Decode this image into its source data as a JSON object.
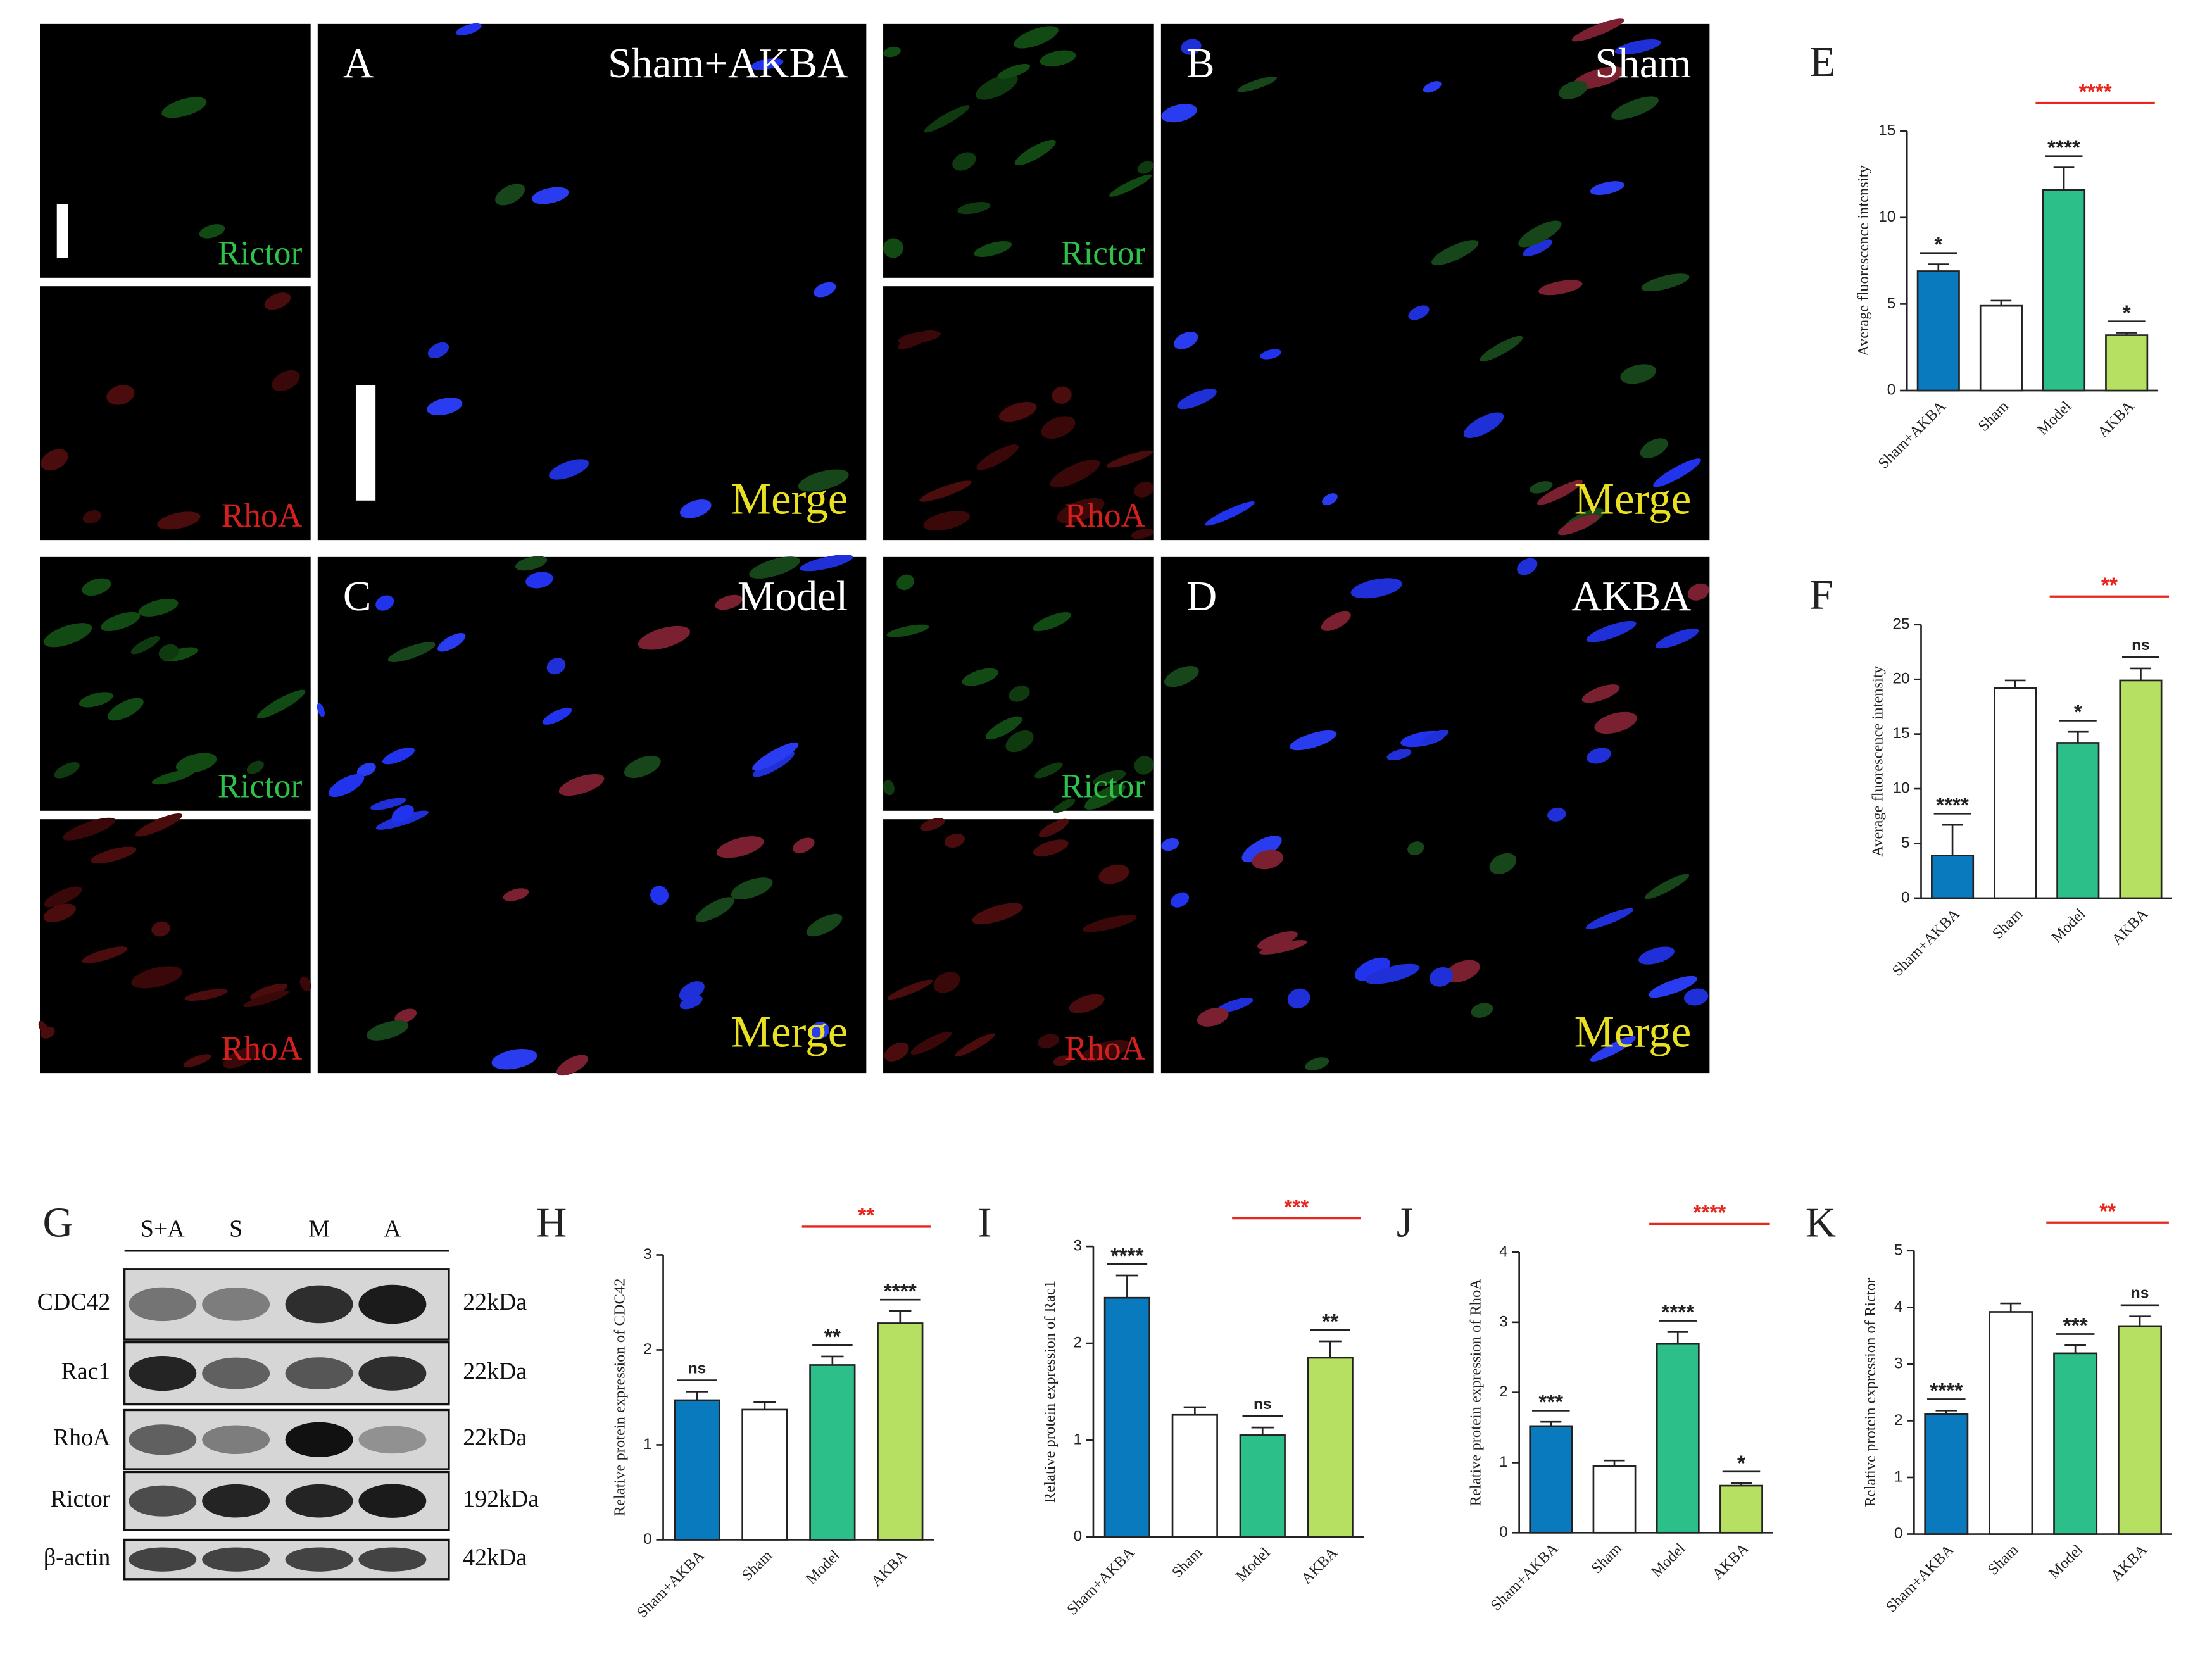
{
  "figures": [
    {
      "letter": "A",
      "group": "Sham+AKBA",
      "channels": [
        "Rictor",
        "RhoA"
      ],
      "merge": "Merge"
    },
    {
      "letter": "B",
      "group": "Sham",
      "channels": [
        "Rictor",
        "RhoA"
      ],
      "merge": "Merge"
    },
    {
      "letter": "C",
      "group": "Model",
      "channels": [
        "Rictor",
        "RhoA"
      ],
      "merge": "Merge"
    },
    {
      "letter": "D",
      "group": "AKBA",
      "channels": [
        "Rictor",
        "RhoA"
      ],
      "merge": "Merge"
    }
  ],
  "blot": {
    "letter": "G",
    "lanes": [
      "S+A",
      "S",
      "M",
      "A"
    ],
    "rows": [
      {
        "protein": "CDC42",
        "size": "22kDa"
      },
      {
        "protein": "Rac1",
        "size": "22kDa"
      },
      {
        "protein": "RhoA",
        "size": "22kDa"
      },
      {
        "protein": "Rictor",
        "size": "192kDa"
      },
      {
        "protein": "β-actin",
        "size": "42kDa"
      }
    ]
  },
  "chart_data": [
    {
      "type": "bar",
      "letter": "E",
      "ylabel": "Average fluorescence intensity",
      "categories": [
        "Sham+AKBA",
        "Sham",
        "Model",
        "AKBA"
      ],
      "values": [
        6.9,
        4.9,
        11.6,
        3.2
      ],
      "errors": [
        0.4,
        0.3,
        1.3,
        0.15
      ],
      "colors": [
        "#0a7abf",
        "#ffffff",
        "#2dbf8a",
        "#b5e061"
      ],
      "ylim": [
        0,
        15
      ],
      "yticks": [
        0,
        5,
        10,
        15
      ],
      "annotations": [
        "*",
        null,
        "****",
        "*"
      ],
      "comparison": {
        "text": "****",
        "from": "Model",
        "to": "AKBA",
        "color": "#e8261e"
      }
    },
    {
      "type": "bar",
      "letter": "F",
      "ylabel": "Average fluorescence intensity",
      "categories": [
        "Sham+AKBA",
        "Sham",
        "Model",
        "AKBA"
      ],
      "values": [
        3.9,
        19.2,
        14.2,
        19.9
      ],
      "errors": [
        2.8,
        0.7,
        1.0,
        1.1
      ],
      "colors": [
        "#0a7abf",
        "#ffffff",
        "#2dbf8a",
        "#b5e061"
      ],
      "ylim": [
        0,
        25
      ],
      "yticks": [
        0,
        5,
        10,
        15,
        20,
        25
      ],
      "annotations": [
        "****",
        null,
        "*",
        "ns"
      ],
      "comparison": {
        "text": "**",
        "from": "Model",
        "to": "AKBA",
        "color": "#e8261e"
      }
    },
    {
      "type": "bar",
      "letter": "H",
      "ylabel": "Relative protein expression of CDC42",
      "categories": [
        "Sham+AKBA",
        "Sham",
        "Model",
        "AKBA"
      ],
      "values": [
        1.47,
        1.37,
        1.84,
        2.28
      ],
      "errors": [
        0.09,
        0.08,
        0.09,
        0.13
      ],
      "colors": [
        "#0a7abf",
        "#ffffff",
        "#2dbf8a",
        "#b5e061"
      ],
      "ylim": [
        0,
        3
      ],
      "yticks": [
        0,
        1,
        2,
        3
      ],
      "annotations": [
        "ns",
        null,
        "**",
        "****"
      ],
      "comparison": {
        "text": "**",
        "from": "Model",
        "to": "AKBA",
        "color": "#e8261e"
      }
    },
    {
      "type": "bar",
      "letter": "I",
      "ylabel": "Relative protein expression of Rac1",
      "categories": [
        "Sham+AKBA",
        "Sham",
        "Model",
        "AKBA"
      ],
      "values": [
        2.47,
        1.26,
        1.05,
        1.85
      ],
      "errors": [
        0.23,
        0.08,
        0.08,
        0.17
      ],
      "colors": [
        "#0a7abf",
        "#ffffff",
        "#2dbf8a",
        "#b5e061"
      ],
      "ylim": [
        0,
        3
      ],
      "yticks": [
        0,
        1,
        2,
        3
      ],
      "annotations": [
        "****",
        null,
        "ns",
        "**"
      ],
      "comparison": {
        "text": "***",
        "from": "Model",
        "to": "AKBA",
        "color": "#e8261e"
      }
    },
    {
      "type": "bar",
      "letter": "J",
      "ylabel": "Relative protein expression of RhoA",
      "categories": [
        "Sham+AKBA",
        "Sham",
        "Model",
        "AKBA"
      ],
      "values": [
        1.52,
        0.95,
        2.69,
        0.67
      ],
      "errors": [
        0.06,
        0.08,
        0.17,
        0.04
      ],
      "colors": [
        "#0a7abf",
        "#ffffff",
        "#2dbf8a",
        "#b5e061"
      ],
      "ylim": [
        0,
        4
      ],
      "yticks": [
        0,
        1,
        2,
        3,
        4
      ],
      "annotations": [
        "***",
        null,
        "****",
        "*"
      ],
      "comparison": {
        "text": "****",
        "from": "Model",
        "to": "AKBA",
        "color": "#e8261e"
      }
    },
    {
      "type": "bar",
      "letter": "K",
      "ylabel": "Relative protein expression of Rictor",
      "categories": [
        "Sham+AKBA",
        "Sham",
        "Model",
        "AKBA"
      ],
      "values": [
        2.12,
        3.92,
        3.19,
        3.67
      ],
      "errors": [
        0.06,
        0.15,
        0.14,
        0.17
      ],
      "colors": [
        "#0a7abf",
        "#ffffff",
        "#2dbf8a",
        "#b5e061"
      ],
      "ylim": [
        0,
        5
      ],
      "yticks": [
        0,
        1,
        2,
        3,
        4,
        5
      ],
      "annotations": [
        "****",
        null,
        "***",
        "ns"
      ],
      "comparison": {
        "text": "**",
        "from": "Model",
        "to": "AKBA",
        "color": "#e8261e"
      }
    }
  ]
}
